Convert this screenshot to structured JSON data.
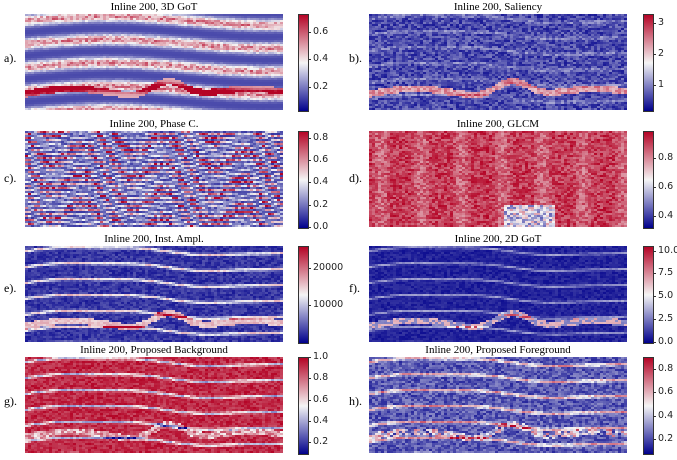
{
  "colormap": {
    "low": "#00008b",
    "mid": "#f5f5f5",
    "high": "#b40426"
  },
  "panels": [
    {
      "id": "a",
      "label": "a).",
      "title": "Inline 200, 3D GoT",
      "ticks": [
        "0.6",
        "0.4",
        "0.2"
      ],
      "tick_values": [
        0.6,
        0.4,
        0.2
      ],
      "range": [
        0.03,
        0.73
      ],
      "pattern": "gotv"
    },
    {
      "id": "b",
      "label": "b).",
      "title": "Inline 200, Saliency",
      "ticks": [
        "3",
        "2",
        "1"
      ],
      "tick_values": [
        3,
        2,
        1
      ],
      "range": [
        0.2,
        3.3
      ],
      "pattern": "sal"
    },
    {
      "id": "c",
      "label": "c).",
      "title": "Inline 200, Phase C.",
      "ticks": [
        "0.8",
        "0.6",
        "0.4",
        "0.2",
        "0.0"
      ],
      "tick_values": [
        0.8,
        0.6,
        0.4,
        0.2,
        0.0
      ],
      "range": [
        0.0,
        0.86
      ],
      "pattern": "phase"
    },
    {
      "id": "d",
      "label": "d).",
      "title": "Inline 200, GLCM",
      "ticks": [
        "0.8",
        "0.6",
        "0.4"
      ],
      "tick_values": [
        0.8,
        0.6,
        0.4
      ],
      "range": [
        0.32,
        0.99
      ],
      "pattern": "glcm"
    },
    {
      "id": "e",
      "label": "e).",
      "title": "Inline 200, Inst. Ampl.",
      "ticks": [
        "20000",
        "10000"
      ],
      "tick_values": [
        20000,
        10000
      ],
      "range": [
        0,
        26000
      ],
      "pattern": "amp"
    },
    {
      "id": "f",
      "label": "f).",
      "title": "Inline 200, 2D GoT",
      "ticks": [
        "10.0",
        "7.5",
        "5.0",
        "2.5",
        "0.0"
      ],
      "tick_values": [
        10.0,
        7.5,
        5.0,
        2.5,
        0.0
      ],
      "range": [
        0.0,
        10.5
      ],
      "pattern": "got2"
    },
    {
      "id": "g",
      "label": "g).",
      "title": "Inline 200, Proposed Background",
      "ticks": [
        "1.0",
        "0.8",
        "0.6",
        "0.4",
        "0.2"
      ],
      "tick_values": [
        1.0,
        0.8,
        0.6,
        0.4,
        0.2
      ],
      "range": [
        0.1,
        1.0
      ],
      "pattern": "bg"
    },
    {
      "id": "h",
      "label": "h).",
      "title": "Inline 200, Proposed Foreground",
      "ticks": [
        "0.8",
        "0.6",
        "0.4",
        "0.2"
      ],
      "tick_values": [
        0.8,
        0.6,
        0.4,
        0.2
      ],
      "range": [
        0.08,
        0.9
      ],
      "pattern": "fg"
    }
  ]
}
